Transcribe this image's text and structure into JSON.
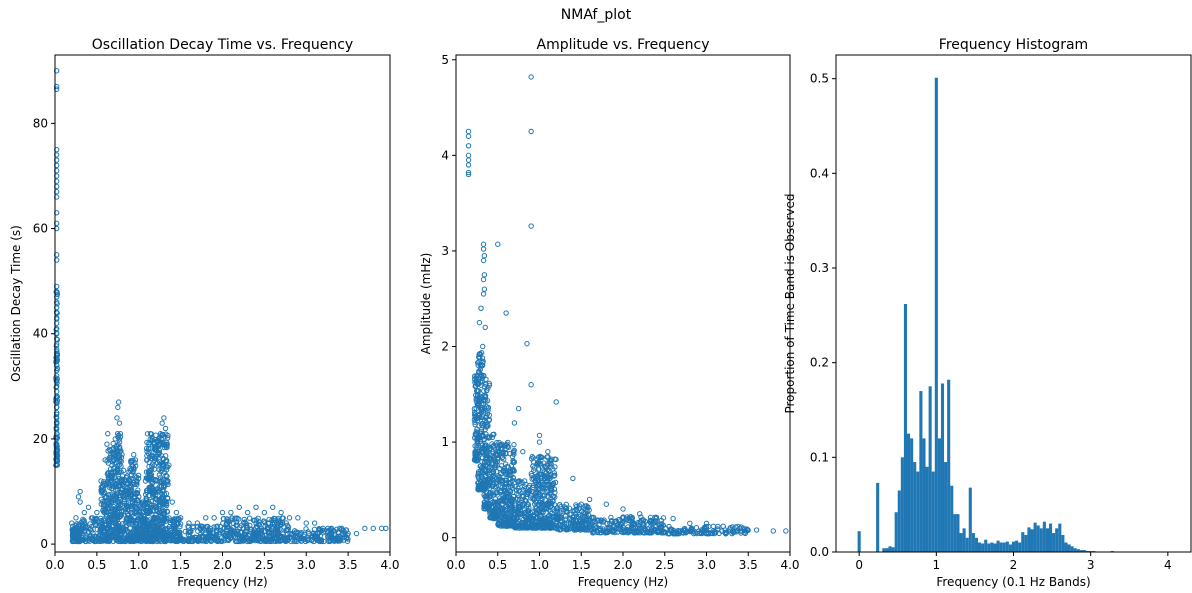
{
  "figure": {
    "suptitle": "NMAf_plot"
  },
  "colors": {
    "marker": "#1f77b4",
    "bar": "#1f77b4",
    "axis": "#000000",
    "background": "#ffffff"
  },
  "chart_data": [
    {
      "type": "scatter",
      "title": "Oscillation Decay Time vs. Frequency",
      "xlabel": "Frequency (Hz)",
      "ylabel": "Oscillation Decay Time (s)",
      "xlim": [
        0.0,
        4.0
      ],
      "ylim": [
        -1.5,
        93
      ],
      "xticks": [
        0.0,
        0.5,
        1.0,
        1.5,
        2.0,
        2.5,
        3.0,
        3.5,
        4.0
      ],
      "xtick_labels": [
        "0.0",
        "0.5",
        "1.0",
        "1.5",
        "2.0",
        "2.5",
        "3.0",
        "3.5",
        "4.0"
      ],
      "yticks": [
        0,
        20,
        40,
        60,
        80
      ],
      "ytick_labels": [
        "0",
        "20",
        "40",
        "60",
        "80"
      ],
      "marker": "hollow-circle",
      "grid": false,
      "points": [
        [
          0.02,
          90
        ],
        [
          0.02,
          87
        ],
        [
          0.02,
          86.5
        ],
        [
          0.02,
          75
        ],
        [
          0.02,
          74
        ],
        [
          0.02,
          73
        ],
        [
          0.02,
          72
        ],
        [
          0.02,
          71
        ],
        [
          0.02,
          70
        ],
        [
          0.02,
          69
        ],
        [
          0.02,
          68
        ],
        [
          0.02,
          67
        ],
        [
          0.02,
          66
        ],
        [
          0.02,
          63
        ],
        [
          0.02,
          61
        ],
        [
          0.02,
          60
        ],
        [
          0.02,
          55
        ],
        [
          0.02,
          54
        ],
        [
          0.02,
          49
        ],
        [
          0.02,
          48
        ],
        [
          0.02,
          47
        ],
        [
          0.02,
          46
        ],
        [
          0.02,
          45
        ],
        [
          0.02,
          44
        ],
        [
          0.02,
          43
        ],
        [
          0.02,
          42
        ],
        [
          0.02,
          41
        ],
        [
          0.02,
          40
        ],
        [
          0.02,
          39
        ],
        [
          0.02,
          38
        ],
        [
          0.02,
          37
        ],
        [
          0.02,
          36
        ],
        [
          0.02,
          35
        ],
        [
          0.02,
          34
        ],
        [
          0.02,
          33
        ],
        [
          0.02,
          32
        ],
        [
          0.02,
          31
        ],
        [
          0.02,
          30
        ],
        [
          0.02,
          29
        ],
        [
          0.02,
          28
        ],
        [
          0.02,
          27
        ],
        [
          0.02,
          26
        ],
        [
          0.02,
          25
        ],
        [
          0.02,
          24
        ],
        [
          0.02,
          23
        ],
        [
          0.02,
          22
        ],
        [
          0.02,
          21
        ],
        [
          0.02,
          20
        ],
        [
          0.02,
          19
        ],
        [
          0.02,
          18
        ],
        [
          0.02,
          17
        ],
        [
          0.02,
          16
        ],
        [
          0.2,
          4
        ],
        [
          0.25,
          5
        ],
        [
          0.28,
          9
        ],
        [
          0.3,
          8
        ],
        [
          0.3,
          10
        ],
        [
          0.35,
          6
        ],
        [
          0.4,
          7
        ],
        [
          0.45,
          5
        ],
        [
          0.5,
          6
        ],
        [
          0.55,
          12
        ],
        [
          0.6,
          16
        ],
        [
          0.62,
          19
        ],
        [
          0.63,
          21
        ],
        [
          0.65,
          18
        ],
        [
          0.68,
          15
        ],
        [
          0.7,
          17
        ],
        [
          0.72,
          20
        ],
        [
          0.74,
          24
        ],
        [
          0.75,
          26
        ],
        [
          0.76,
          27
        ],
        [
          0.77,
          23
        ],
        [
          0.78,
          21
        ],
        [
          0.8,
          17
        ],
        [
          0.82,
          14
        ],
        [
          0.85,
          10
        ],
        [
          0.88,
          9
        ],
        [
          0.9,
          12
        ],
        [
          0.92,
          15
        ],
        [
          0.94,
          17
        ],
        [
          0.96,
          16
        ],
        [
          0.98,
          12
        ],
        [
          1.0,
          9
        ],
        [
          1.05,
          8
        ],
        [
          1.08,
          12
        ],
        [
          1.1,
          16
        ],
        [
          1.12,
          19
        ],
        [
          1.14,
          21
        ],
        [
          1.16,
          20
        ],
        [
          1.18,
          19
        ],
        [
          1.2,
          18
        ],
        [
          1.22,
          17
        ],
        [
          1.24,
          19
        ],
        [
          1.26,
          21
        ],
        [
          1.28,
          23
        ],
        [
          1.3,
          24
        ],
        [
          1.32,
          22
        ],
        [
          1.34,
          19
        ],
        [
          1.36,
          15
        ],
        [
          1.4,
          8
        ],
        [
          1.45,
          6
        ],
        [
          1.5,
          5
        ],
        [
          1.6,
          4
        ],
        [
          1.7,
          4
        ],
        [
          1.8,
          5
        ],
        [
          1.9,
          5
        ],
        [
          2.0,
          6
        ],
        [
          2.1,
          6
        ],
        [
          2.2,
          7
        ],
        [
          2.3,
          6
        ],
        [
          2.4,
          7
        ],
        [
          2.5,
          6
        ],
        [
          2.6,
          7
        ],
        [
          2.7,
          6
        ],
        [
          2.8,
          5
        ],
        [
          2.9,
          5
        ],
        [
          3.0,
          4
        ],
        [
          3.1,
          4
        ],
        [
          3.2,
          3
        ],
        [
          3.3,
          3
        ],
        [
          3.4,
          3
        ],
        [
          3.5,
          2
        ],
        [
          3.6,
          2
        ],
        [
          3.7,
          3
        ],
        [
          3.8,
          3
        ],
        [
          3.9,
          3
        ],
        [
          3.95,
          3
        ]
      ],
      "dense_region": [
        {
          "x": [
            0.2,
            0.3
          ],
          "ymin": 0.5,
          "ymax": 4
        },
        {
          "x": [
            0.3,
            0.55
          ],
          "ymin": 0.5,
          "ymax": 5
        },
        {
          "x": [
            0.55,
            0.62
          ],
          "ymin": 0.5,
          "ymax": 12
        },
        {
          "x": [
            0.62,
            0.68
          ],
          "ymin": 0.5,
          "ymax": 18
        },
        {
          "x": [
            0.68,
            0.8
          ],
          "ymin": 0.5,
          "ymax": 21
        },
        {
          "x": [
            0.8,
            0.88
          ],
          "ymin": 0.5,
          "ymax": 13
        },
        {
          "x": [
            0.88,
            1.0
          ],
          "ymin": 0.5,
          "ymax": 16
        },
        {
          "x": [
            1.0,
            1.08
          ],
          "ymin": 0.5,
          "ymax": 8
        },
        {
          "x": [
            1.08,
            1.35
          ],
          "ymin": 0.5,
          "ymax": 21
        },
        {
          "x": [
            1.35,
            1.5
          ],
          "ymin": 0.5,
          "ymax": 5
        },
        {
          "x": [
            1.5,
            2.0
          ],
          "ymin": 0.5,
          "ymax": 3.5
        },
        {
          "x": [
            2.0,
            2.8
          ],
          "ymin": 0.5,
          "ymax": 5
        },
        {
          "x": [
            2.8,
            3.5
          ],
          "ymin": 0.5,
          "ymax": 3
        },
        {
          "x": [
            0.01,
            0.03
          ],
          "ymin": 15,
          "ymax": 48
        }
      ]
    },
    {
      "type": "scatter",
      "title": "Amplitude vs. Frequency",
      "xlabel": "Frequency (Hz)",
      "ylabel": "Amplitude (mHz)",
      "xlim": [
        0.0,
        4.0
      ],
      "ylim": [
        -0.15,
        5.05
      ],
      "xticks": [
        0.0,
        0.5,
        1.0,
        1.5,
        2.0,
        2.5,
        3.0,
        3.5,
        4.0
      ],
      "xtick_labels": [
        "0.0",
        "0.5",
        "1.0",
        "1.5",
        "2.0",
        "2.5",
        "3.0",
        "3.5",
        "4.0"
      ],
      "yticks": [
        0,
        1,
        2,
        3,
        4,
        5
      ],
      "ytick_labels": [
        "0",
        "1",
        "2",
        "3",
        "4",
        "5"
      ],
      "marker": "hollow-circle",
      "grid": false,
      "points": [
        [
          0.9,
          4.82
        ],
        [
          0.9,
          4.25
        ],
        [
          0.9,
          3.26
        ],
        [
          0.15,
          4.25
        ],
        [
          0.15,
          4.2
        ],
        [
          0.15,
          4.1
        ],
        [
          0.15,
          4.0
        ],
        [
          0.15,
          3.95
        ],
        [
          0.15,
          3.9
        ],
        [
          0.15,
          3.82
        ],
        [
          0.15,
          3.8
        ],
        [
          0.33,
          3.07
        ],
        [
          0.33,
          3.02
        ],
        [
          0.34,
          2.95
        ],
        [
          0.33,
          2.9
        ],
        [
          0.34,
          2.75
        ],
        [
          0.33,
          2.7
        ],
        [
          0.34,
          2.6
        ],
        [
          0.33,
          2.55
        ],
        [
          0.5,
          3.07
        ],
        [
          0.6,
          2.35
        ],
        [
          0.35,
          2.2
        ],
        [
          0.3,
          2.4
        ],
        [
          0.28,
          2.25
        ],
        [
          0.32,
          2.0
        ],
        [
          0.3,
          1.85
        ],
        [
          0.85,
          2.03
        ],
        [
          0.9,
          1.6
        ],
        [
          1.2,
          1.42
        ],
        [
          0.7,
          1.2
        ],
        [
          0.75,
          1.35
        ],
        [
          0.8,
          0.9
        ],
        [
          1.0,
          1.07
        ],
        [
          1.0,
          1.0
        ],
        [
          1.1,
          0.9
        ],
        [
          1.4,
          0.62
        ],
        [
          1.5,
          0.35
        ],
        [
          1.6,
          0.4
        ],
        [
          1.8,
          0.35
        ],
        [
          2.0,
          0.3
        ],
        [
          2.2,
          0.25
        ],
        [
          2.4,
          0.2
        ],
        [
          2.6,
          0.2
        ],
        [
          2.8,
          0.15
        ],
        [
          3.0,
          0.15
        ],
        [
          3.2,
          0.12
        ],
        [
          3.4,
          0.1
        ],
        [
          3.6,
          0.08
        ],
        [
          3.8,
          0.07
        ],
        [
          3.95,
          0.07
        ]
      ],
      "dense_region": [
        {
          "x": [
            0.22,
            0.26
          ],
          "ymin": 0.8,
          "ymax": 1.7
        },
        {
          "x": [
            0.26,
            0.33
          ],
          "ymin": 0.5,
          "ymax": 1.95
        },
        {
          "x": [
            0.33,
            0.4
          ],
          "ymin": 0.3,
          "ymax": 1.7
        },
        {
          "x": [
            0.4,
            0.5
          ],
          "ymin": 0.2,
          "ymax": 1.1
        },
        {
          "x": [
            0.5,
            0.7
          ],
          "ymin": 0.12,
          "ymax": 1.0
        },
        {
          "x": [
            0.7,
            0.9
          ],
          "ymin": 0.1,
          "ymax": 0.6
        },
        {
          "x": [
            0.9,
            1.2
          ],
          "ymin": 0.1,
          "ymax": 0.85
        },
        {
          "x": [
            1.2,
            1.6
          ],
          "ymin": 0.08,
          "ymax": 0.35
        },
        {
          "x": [
            1.6,
            2.5
          ],
          "ymin": 0.05,
          "ymax": 0.22
        },
        {
          "x": [
            2.5,
            3.5
          ],
          "ymin": 0.04,
          "ymax": 0.12
        }
      ]
    },
    {
      "type": "bar",
      "title": "Frequency Histogram",
      "xlabel": "Frequency (0.1 Hz Bands)",
      "ylabel": "Proportion of Time Band is Observed",
      "xlim": [
        -0.3,
        4.3
      ],
      "ylim": [
        0.0,
        0.525
      ],
      "xticks": [
        0,
        1,
        2,
        3,
        4
      ],
      "xtick_labels": [
        "0",
        "1",
        "2",
        "3",
        "4"
      ],
      "yticks": [
        0.0,
        0.1,
        0.2,
        0.3,
        0.4,
        0.5
      ],
      "ytick_labels": [
        "0.0",
        "0.1",
        "0.2",
        "0.3",
        "0.4",
        "0.5"
      ],
      "bin_width": 0.04,
      "grid": false,
      "bins": [
        [
          0.0,
          0.022
        ],
        [
          0.04,
          0.0
        ],
        [
          0.08,
          0.0
        ],
        [
          0.12,
          0.0
        ],
        [
          0.16,
          0.0
        ],
        [
          0.2,
          0.0
        ],
        [
          0.24,
          0.073
        ],
        [
          0.28,
          0.0
        ],
        [
          0.32,
          0.004
        ],
        [
          0.36,
          0.004
        ],
        [
          0.4,
          0.006
        ],
        [
          0.44,
          0.005
        ],
        [
          0.48,
          0.042
        ],
        [
          0.52,
          0.065
        ],
        [
          0.56,
          0.1
        ],
        [
          0.6,
          0.262
        ],
        [
          0.64,
          0.125
        ],
        [
          0.68,
          0.12
        ],
        [
          0.72,
          0.095
        ],
        [
          0.76,
          0.085
        ],
        [
          0.8,
          0.17
        ],
        [
          0.84,
          0.12
        ],
        [
          0.88,
          0.09
        ],
        [
          0.92,
          0.175
        ],
        [
          0.96,
          0.085
        ],
        [
          1.0,
          0.501
        ],
        [
          1.04,
          0.12
        ],
        [
          1.08,
          0.178
        ],
        [
          1.12,
          0.095
        ],
        [
          1.16,
          0.182
        ],
        [
          1.2,
          0.07
        ],
        [
          1.24,
          0.04
        ],
        [
          1.28,
          0.04
        ],
        [
          1.32,
          0.02
        ],
        [
          1.36,
          0.025
        ],
        [
          1.4,
          0.015
        ],
        [
          1.44,
          0.068
        ],
        [
          1.48,
          0.02
        ],
        [
          1.52,
          0.015
        ],
        [
          1.56,
          0.01
        ],
        [
          1.6,
          0.009
        ],
        [
          1.64,
          0.013
        ],
        [
          1.68,
          0.009
        ],
        [
          1.72,
          0.01
        ],
        [
          1.76,
          0.009
        ],
        [
          1.8,
          0.012
        ],
        [
          1.84,
          0.01
        ],
        [
          1.88,
          0.01
        ],
        [
          1.92,
          0.011
        ],
        [
          1.96,
          0.008
        ],
        [
          2.0,
          0.011
        ],
        [
          2.04,
          0.012
        ],
        [
          2.08,
          0.01
        ],
        [
          2.12,
          0.021
        ],
        [
          2.16,
          0.018
        ],
        [
          2.2,
          0.026
        ],
        [
          2.24,
          0.024
        ],
        [
          2.28,
          0.031
        ],
        [
          2.32,
          0.028
        ],
        [
          2.36,
          0.025
        ],
        [
          2.4,
          0.032
        ],
        [
          2.44,
          0.025
        ],
        [
          2.48,
          0.03
        ],
        [
          2.52,
          0.02
        ],
        [
          2.56,
          0.025
        ],
        [
          2.6,
          0.03
        ],
        [
          2.64,
          0.018
        ],
        [
          2.68,
          0.01
        ],
        [
          2.72,
          0.008
        ],
        [
          2.76,
          0.006
        ],
        [
          2.8,
          0.004
        ],
        [
          2.84,
          0.003
        ],
        [
          2.88,
          0.002
        ],
        [
          2.92,
          0.002
        ],
        [
          2.96,
          0.001
        ],
        [
          3.0,
          0.001
        ],
        [
          3.04,
          0.001
        ],
        [
          3.08,
          0.0
        ],
        [
          3.12,
          0.0
        ],
        [
          3.16,
          0.0
        ],
        [
          3.2,
          0.0
        ],
        [
          3.24,
          0.0
        ],
        [
          3.28,
          0.001
        ]
      ]
    }
  ]
}
